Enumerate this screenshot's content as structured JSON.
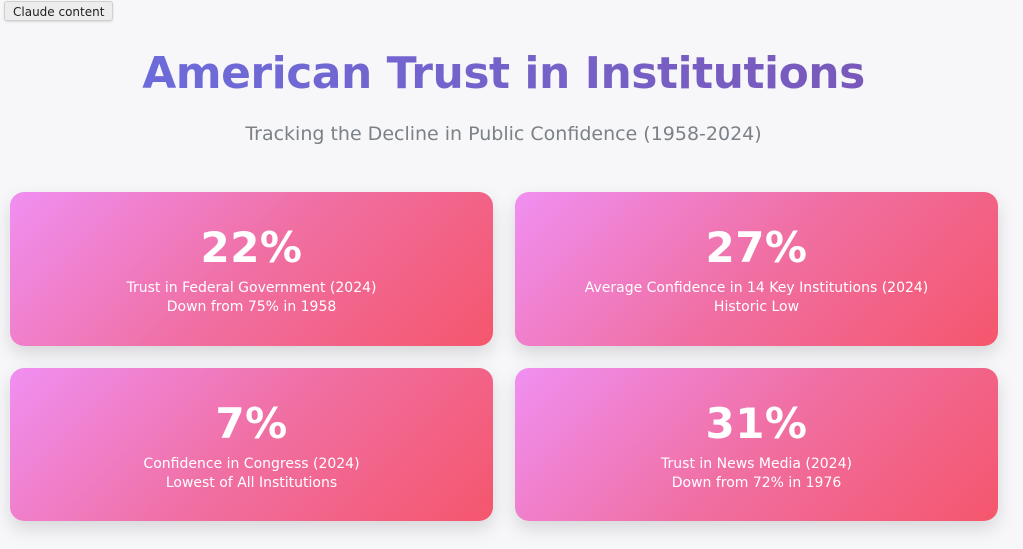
{
  "tag": "Claude content",
  "header": {
    "title": "American Trust in Institutions",
    "subtitle": "Tracking the Decline in Public Confidence (1958-2024)"
  },
  "stats": [
    {
      "value": "22%",
      "label": "Trust in Federal Government (2024)",
      "note": "Down from 75% in 1958"
    },
    {
      "value": "27%",
      "label": "Average Confidence in 14 Key Institutions (2024)",
      "note": "Historic Low"
    },
    {
      "value": "7%",
      "label": "Confidence in Congress (2024)",
      "note": "Lowest of All Institutions"
    },
    {
      "value": "31%",
      "label": "Trust in News Media (2024)",
      "note": "Down from 72% in 1976"
    }
  ],
  "colors": {
    "title_gradient": [
      "#6a6fe0",
      "#7a55b4"
    ],
    "card_gradient": [
      "#f08ff2",
      "#f06fa3",
      "#f5566c"
    ],
    "subtitle": "#7b8186"
  }
}
